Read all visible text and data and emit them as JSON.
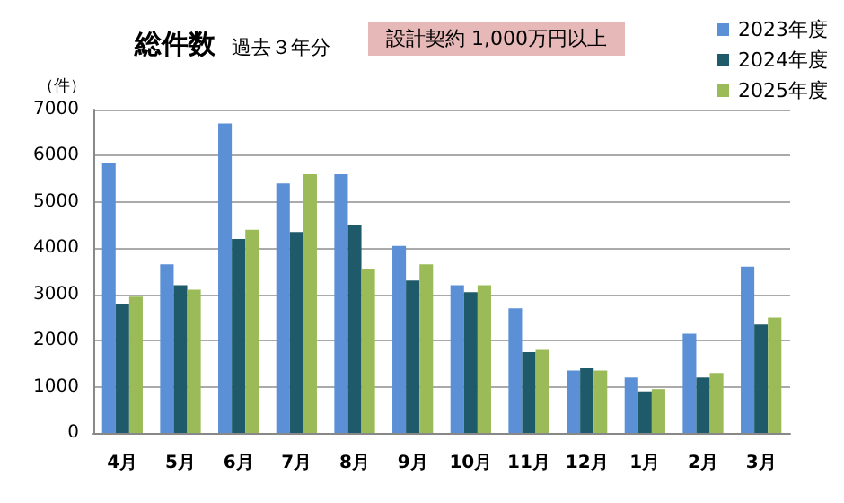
{
  "chart_data": {
    "type": "bar",
    "title": "総件数",
    "subtitle": "過去３年分",
    "annotations": [
      "設計契約 1,000万円以上"
    ],
    "ylabel": "（件）",
    "categories": [
      "4月",
      "5月",
      "6月",
      "7月",
      "8月",
      "9月",
      "10月",
      "11月",
      "12月",
      "1月",
      "2月",
      "3月"
    ],
    "series": [
      {
        "name": "2023年度",
        "color": "#5b8fd6",
        "values": [
          5850,
          3650,
          6700,
          5400,
          5600,
          4050,
          3200,
          2700,
          1350,
          1200,
          2150,
          3600
        ]
      },
      {
        "name": "2024年度",
        "color": "#1f5a6a",
        "values": [
          2800,
          3200,
          4200,
          4350,
          4500,
          3300,
          3050,
          1750,
          1400,
          900,
          1200,
          2350
        ]
      },
      {
        "name": "2025年度",
        "color": "#9bbb59",
        "values": [
          2950,
          3100,
          4400,
          5600,
          3550,
          3650,
          3200,
          1800,
          1350,
          950,
          1300,
          2500
        ]
      }
    ],
    "ylim": [
      0,
      7000
    ],
    "yticks": [
      0,
      1000,
      2000,
      3000,
      4000,
      5000,
      6000,
      7000
    ],
    "grid": "y",
    "legend": "top right"
  }
}
